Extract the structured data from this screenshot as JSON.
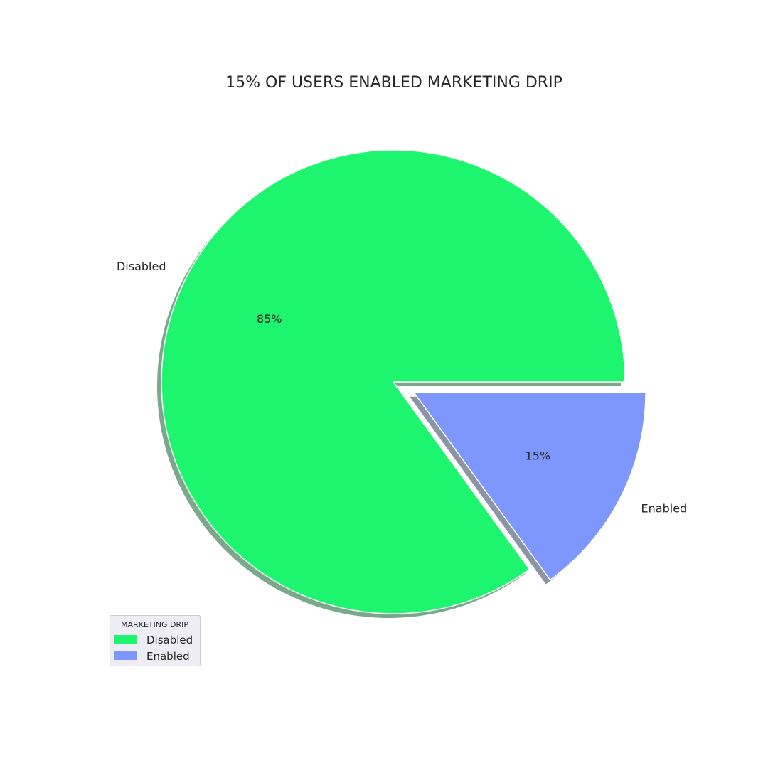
{
  "chart_data": {
    "type": "pie",
    "title": "15% OF USERS ENABLED MARKETING DRIP",
    "slices": [
      {
        "label": "Disabled",
        "value": 85,
        "pct_label": "85%",
        "color": "#1ef56e",
        "shadow": "#7aa88a",
        "exploded": false
      },
      {
        "label": "Enabled",
        "value": 15,
        "pct_label": "15%",
        "color": "#7e97ff",
        "shadow": "#8c94a8",
        "exploded": true
      }
    ],
    "shadow": true,
    "legend": {
      "title": "MARKETING DRIP",
      "placement": "lower-left",
      "entries": [
        "Disabled",
        "Enabled"
      ]
    }
  }
}
